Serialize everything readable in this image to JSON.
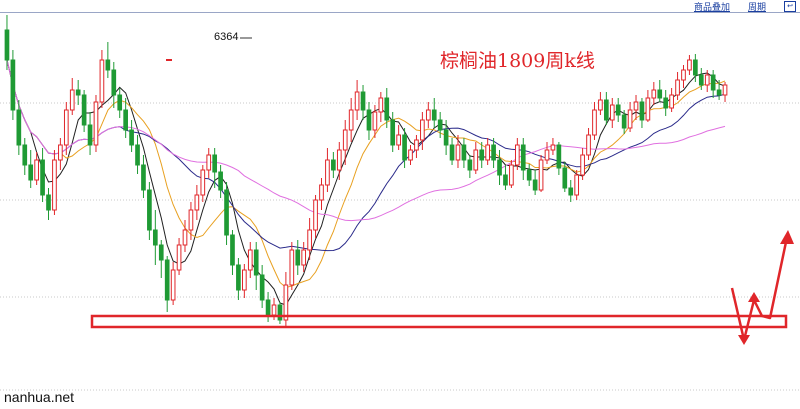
{
  "toolbar": {
    "overlay_label": "商品叠加",
    "period_label": "周期",
    "restore_icon": "restore-icon"
  },
  "chart_data": {
    "type": "candlestick",
    "title": "棕榈油1809周k线",
    "peak_label": "6364",
    "watermark": "nanhua.net",
    "up_color": "#e0262a",
    "down_color": "#1f9a34",
    "ma_colors": [
      "#202020",
      "#e8a020",
      "#2a2a8a",
      "#e070e0"
    ],
    "support_zone": "rectangle",
    "forecast": "down-then-up arrows",
    "grid": "horizontal dotted",
    "axis_ticks": "none visible",
    "candles": [
      [
        330,
        300,
        345,
        290
      ],
      [
        300,
        250,
        310,
        240
      ],
      [
        250,
        215,
        260,
        205
      ],
      [
        215,
        195,
        222,
        185
      ],
      [
        195,
        180,
        210,
        172
      ],
      [
        180,
        200,
        208,
        175
      ],
      [
        200,
        165,
        212,
        158
      ],
      [
        165,
        150,
        172,
        140
      ],
      [
        150,
        200,
        210,
        145
      ],
      [
        200,
        215,
        222,
        190
      ],
      [
        215,
        250,
        258,
        205
      ],
      [
        250,
        270,
        282,
        245
      ],
      [
        270,
        265,
        280,
        255
      ],
      [
        265,
        235,
        270,
        228
      ],
      [
        235,
        215,
        248,
        205
      ],
      [
        215,
        258,
        265,
        208
      ],
      [
        258,
        300,
        310,
        252
      ],
      [
        300,
        290,
        318,
        282
      ],
      [
        290,
        265,
        298,
        252
      ],
      [
        265,
        250,
        272,
        242
      ],
      [
        250,
        230,
        262,
        222
      ],
      [
        230,
        215,
        240,
        208
      ],
      [
        215,
        195,
        225,
        186
      ],
      [
        195,
        170,
        205,
        162
      ],
      [
        170,
        130,
        178,
        120
      ],
      [
        130,
        115,
        150,
        95
      ],
      [
        115,
        100,
        120,
        82
      ],
      [
        100,
        60,
        104,
        48
      ],
      [
        60,
        90,
        98,
        55
      ],
      [
        90,
        115,
        122,
        85
      ],
      [
        115,
        130,
        140,
        108
      ],
      [
        130,
        150,
        158,
        120
      ],
      [
        150,
        165,
        175,
        140
      ],
      [
        165,
        190,
        195,
        158
      ],
      [
        190,
        205,
        212,
        182
      ],
      [
        205,
        188,
        212,
        172
      ],
      [
        188,
        170,
        195,
        162
      ],
      [
        170,
        125,
        178,
        115
      ],
      [
        125,
        95,
        130,
        85
      ],
      [
        95,
        70,
        102,
        60
      ],
      [
        70,
        90,
        96,
        62
      ],
      [
        90,
        110,
        118,
        82
      ],
      [
        110,
        85,
        118,
        70
      ],
      [
        85,
        60,
        95,
        52
      ],
      [
        60,
        45,
        68,
        38
      ],
      [
        45,
        55,
        62,
        40
      ],
      [
        55,
        40,
        58,
        36
      ],
      [
        40,
        75,
        88,
        34
      ],
      [
        75,
        110,
        118,
        70
      ],
      [
        110,
        95,
        120,
        85
      ],
      [
        95,
        110,
        118,
        88
      ],
      [
        110,
        130,
        142,
        100
      ],
      [
        130,
        160,
        165,
        122
      ],
      [
        160,
        175,
        182,
        150
      ],
      [
        175,
        200,
        212,
        168
      ],
      [
        200,
        190,
        208,
        182
      ],
      [
        190,
        210,
        218,
        180
      ],
      [
        210,
        230,
        240,
        195
      ],
      [
        230,
        250,
        262,
        218
      ],
      [
        250,
        268,
        280,
        240
      ],
      [
        268,
        250,
        275,
        240
      ],
      [
        250,
        230,
        258,
        220
      ],
      [
        230,
        248,
        255,
        222
      ],
      [
        248,
        262,
        268,
        238
      ],
      [
        262,
        240,
        272,
        232
      ],
      [
        240,
        215,
        248,
        208
      ],
      [
        215,
        225,
        235,
        210
      ],
      [
        225,
        200,
        232,
        192
      ],
      [
        200,
        210,
        215,
        195
      ],
      [
        210,
        220,
        225,
        202
      ],
      [
        220,
        240,
        248,
        210
      ],
      [
        240,
        250,
        258,
        232
      ],
      [
        250,
        240,
        262,
        232
      ],
      [
        240,
        230,
        248,
        222
      ],
      [
        230,
        215,
        240,
        205
      ],
      [
        215,
        200,
        222,
        195
      ],
      [
        200,
        215,
        225,
        192
      ],
      [
        215,
        200,
        222,
        192
      ],
      [
        200,
        190,
        205,
        182
      ],
      [
        190,
        210,
        218,
        186
      ],
      [
        210,
        200,
        218,
        192
      ],
      [
        200,
        215,
        222,
        195
      ],
      [
        215,
        200,
        222,
        192
      ],
      [
        200,
        185,
        210,
        175
      ],
      [
        185,
        175,
        195,
        170
      ],
      [
        175,
        195,
        200,
        172
      ],
      [
        195,
        215,
        222,
        190
      ],
      [
        215,
        190,
        222,
        180
      ],
      [
        190,
        180,
        196,
        174
      ],
      [
        180,
        170,
        190,
        165
      ],
      [
        170,
        200,
        205,
        168
      ],
      [
        200,
        210,
        218,
        196
      ],
      [
        210,
        215,
        222,
        205
      ],
      [
        215,
        192,
        218,
        185
      ],
      [
        192,
        172,
        198,
        168
      ],
      [
        172,
        165,
        180,
        158
      ],
      [
        165,
        185,
        190,
        160
      ],
      [
        185,
        205,
        212,
        180
      ],
      [
        205,
        225,
        232,
        200
      ],
      [
        225,
        250,
        258,
        220
      ],
      [
        250,
        260,
        268,
        245
      ],
      [
        260,
        240,
        268,
        235
      ],
      [
        240,
        255,
        262,
        232
      ],
      [
        255,
        245,
        262,
        238
      ],
      [
        245,
        232,
        250,
        226
      ],
      [
        232,
        250,
        258,
        228
      ],
      [
        250,
        258,
        265,
        240
      ],
      [
        258,
        240,
        262,
        232
      ],
      [
        240,
        262,
        270,
        238
      ],
      [
        262,
        270,
        278,
        255
      ],
      [
        270,
        262,
        280,
        258
      ],
      [
        262,
        252,
        270,
        244
      ],
      [
        252,
        265,
        272,
        248
      ],
      [
        265,
        280,
        288,
        260
      ],
      [
        280,
        290,
        295,
        272
      ],
      [
        290,
        300,
        305,
        285
      ],
      [
        300,
        285,
        306,
        278
      ],
      [
        285,
        275,
        292,
        270
      ],
      [
        275,
        285,
        290,
        268
      ],
      [
        285,
        270,
        290,
        262
      ],
      [
        270,
        265,
        280,
        260
      ],
      [
        265,
        275,
        278,
        258
      ]
    ]
  }
}
